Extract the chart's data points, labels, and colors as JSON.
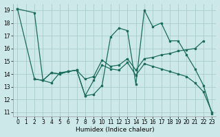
{
  "xlabel": "Humidex (Indice chaleur)",
  "bg_color": "#cce8e8",
  "grid_color": "#aacccc",
  "line_color": "#1a6b5a",
  "xlim": [
    -0.5,
    23.5
  ],
  "ylim": [
    10.7,
    19.5
  ],
  "xticks": [
    0,
    1,
    2,
    3,
    4,
    5,
    6,
    7,
    8,
    9,
    10,
    11,
    12,
    13,
    14,
    15,
    16,
    17,
    18,
    19,
    20,
    21,
    22,
    23
  ],
  "yticks": [
    11,
    12,
    13,
    14,
    15,
    16,
    17,
    18,
    19
  ],
  "line1_x": [
    0,
    2,
    3,
    4,
    5,
    6,
    7,
    8,
    9,
    10,
    11,
    12,
    13,
    14,
    15,
    16,
    17,
    18,
    19,
    20,
    21,
    22,
    23
  ],
  "line1_y": [
    19.1,
    18.8,
    13.5,
    13.3,
    14.1,
    14.2,
    14.3,
    12.3,
    12.4,
    13.1,
    16.9,
    17.6,
    17.4,
    13.2,
    19.0,
    17.7,
    18.0,
    16.6,
    16.6,
    15.5,
    14.4,
    13.1,
    10.9
  ],
  "line2_x": [
    2,
    3,
    4,
    5,
    6,
    7,
    8,
    9,
    10,
    11,
    12,
    13,
    14,
    15,
    16,
    17,
    18,
    19,
    20,
    21,
    22
  ],
  "line2_y": [
    13.6,
    13.5,
    14.1,
    14.0,
    14.2,
    14.3,
    13.6,
    13.8,
    15.1,
    14.6,
    14.7,
    15.2,
    14.3,
    15.2,
    15.3,
    15.5,
    15.6,
    15.8,
    15.9,
    16.0,
    16.6
  ],
  "line3_x": [
    0,
    2,
    3,
    4,
    5,
    6,
    7,
    8,
    9,
    10,
    11,
    12,
    13,
    14,
    15,
    16,
    17,
    18,
    19,
    20,
    21,
    22,
    23
  ],
  "line3_y": [
    19.1,
    13.6,
    13.5,
    14.1,
    14.0,
    14.2,
    14.3,
    12.3,
    13.5,
    14.7,
    14.4,
    14.3,
    14.9,
    13.9,
    14.8,
    14.6,
    14.4,
    14.2,
    14.0,
    13.8,
    13.3,
    12.6,
    11.0
  ]
}
